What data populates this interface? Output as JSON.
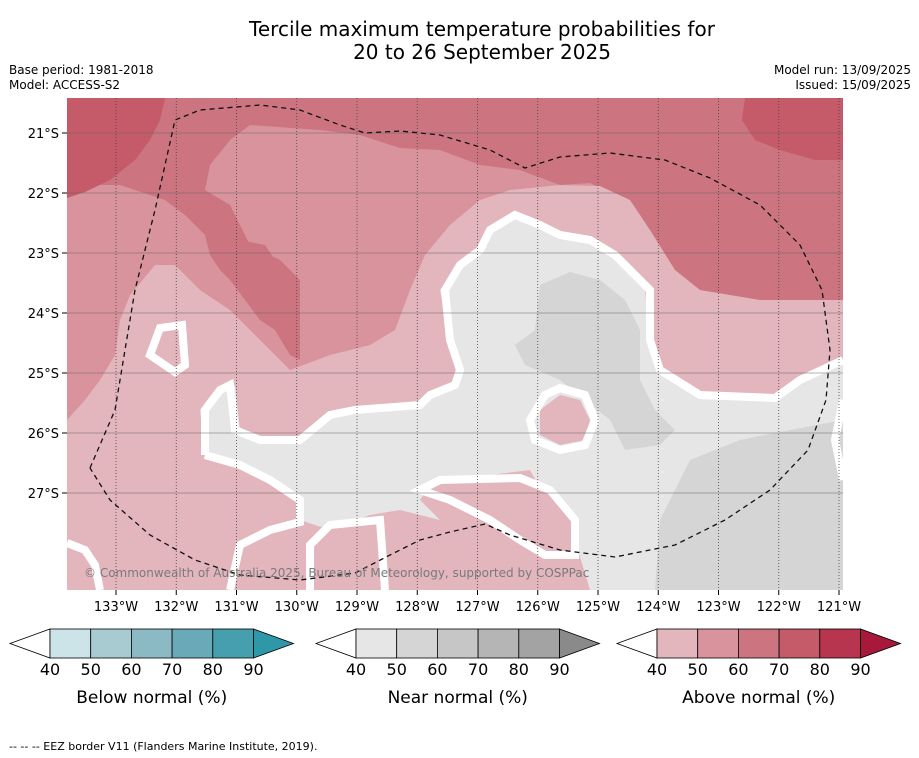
{
  "title_line1": "Tercile maximum temperature probabilities for",
  "title_line2": "20 to 26 September 2025",
  "base_period": "Base period: 1981-2018",
  "model": "Model: ACCESS-S2",
  "model_run": "Model run: 13/09/2025",
  "issued": "Issued: 15/09/2025",
  "copyright": "© Commonwealth of Australia 2025, Bureau of Meteorology, supported by COSPPac",
  "footnote": "--  --  -- EEZ border V11 (Flanders Marine Institute, 2019).",
  "colors": {
    "below": [
      "#cce3e8",
      "#a8cbd1",
      "#8bbac4",
      "#6aaab8",
      "#459fae",
      "#2f98a8"
    ],
    "near": [
      "#e6e6e6",
      "#d5d5d5",
      "#c6c6c6",
      "#b5b5b5",
      "#a3a3a3",
      "#8a8a8a"
    ],
    "above": [
      "#e3b5bd",
      "#d8939c",
      "#cc7480",
      "#c55a69",
      "#b83550",
      "#a8183a"
    ],
    "lowest": "#ffffff"
  },
  "chart_data": {
    "type": "heatmap",
    "x_ticks": [
      "133°W",
      "132°W",
      "131°W",
      "130°W",
      "129°W",
      "128°W",
      "127°W",
      "126°W",
      "125°W",
      "124°W",
      "123°W",
      "122°W",
      "121°W"
    ],
    "y_ticks": [
      "21°S",
      "22°S",
      "23°S",
      "24°S",
      "25°S",
      "26°S",
      "27°S"
    ],
    "grid": true,
    "legends": [
      {
        "label": "Below normal (%)",
        "ticks": [
          "40",
          "50",
          "60",
          "70",
          "80",
          "90"
        ]
      },
      {
        "label": "Near normal (%)",
        "ticks": [
          "40",
          "50",
          "60",
          "70",
          "80",
          "90"
        ]
      },
      {
        "label": "Above normal (%)",
        "ticks": [
          "40",
          "50",
          "60",
          "70",
          "80",
          "90"
        ]
      }
    ],
    "regions": [
      {
        "category": "above",
        "level": "60-70",
        "area": "west (132°W-131°W, 22.5°S-24°S)"
      },
      {
        "category": "above",
        "level": "70-80",
        "area": "north-west and north-east corners"
      },
      {
        "category": "above",
        "level": "50-60",
        "area": "north, centre-west, east near 121°W"
      },
      {
        "category": "above",
        "level": "40-50",
        "area": "south-west and centre"
      },
      {
        "category": "near",
        "level": "40-50",
        "area": "centre, south and south-east"
      },
      {
        "category": "near",
        "level": "50-60",
        "area": "near 125°W 24°S-26°S and south-east"
      }
    ]
  }
}
